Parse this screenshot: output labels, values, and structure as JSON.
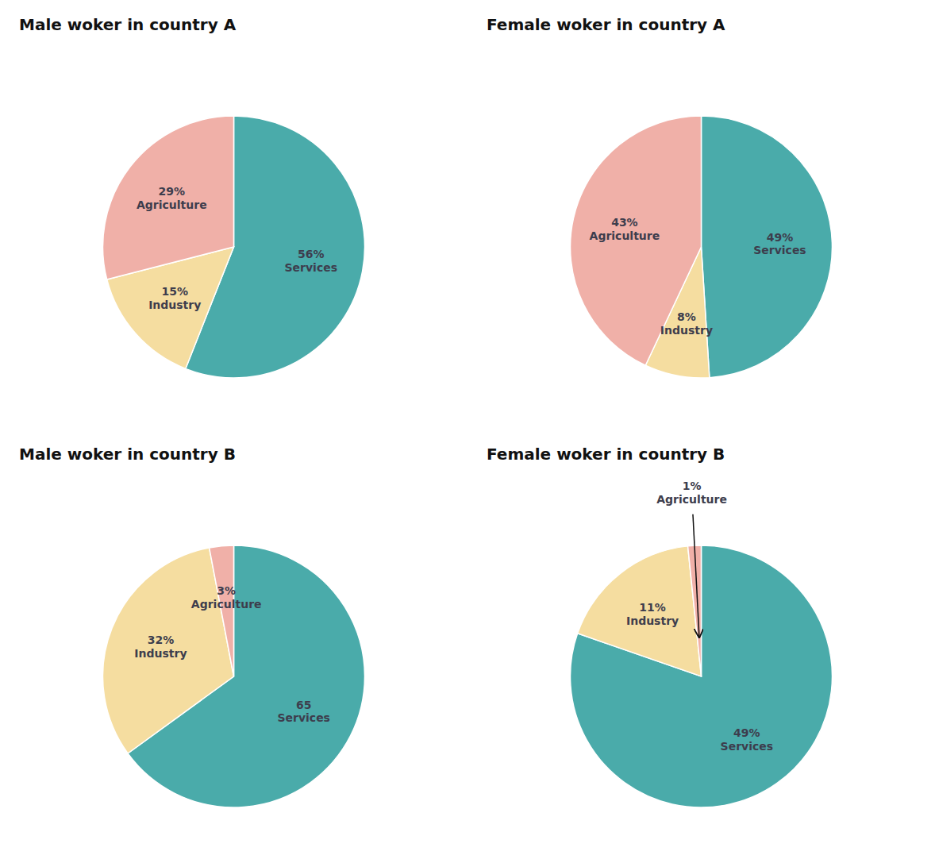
{
  "chart_data": [
    {
      "type": "pie",
      "title": "Male woker in country A",
      "categories": [
        "Services",
        "Industry",
        "Agriculture"
      ],
      "values": [
        56,
        15,
        29
      ],
      "value_labels": [
        "56%",
        "15%",
        "29%"
      ],
      "colors": [
        "#4aabaa",
        "#f5dda0",
        "#f0b0a8"
      ],
      "data_labels": true
    },
    {
      "type": "pie",
      "title": "Female woker in country A",
      "categories": [
        "Services",
        "Industry",
        "Agriculture"
      ],
      "values": [
        49,
        8,
        43
      ],
      "value_labels": [
        "49%",
        "8%",
        "43%"
      ],
      "colors": [
        "#4aabaa",
        "#f5dda0",
        "#f0b0a8"
      ],
      "data_labels": true
    },
    {
      "type": "pie",
      "title": "Male woker in country B",
      "categories": [
        "Services",
        "Industry",
        "Agriculture"
      ],
      "values": [
        65,
        32,
        3
      ],
      "value_labels": [
        "65",
        "32%",
        "3%"
      ],
      "colors": [
        "#4aabaa",
        "#f5dda0",
        "#f0b0a8"
      ],
      "data_labels": true
    },
    {
      "type": "pie",
      "title": "Female woker in country B",
      "categories": [
        "Services",
        "Industry",
        "Agriculture"
      ],
      "values": [
        49,
        11,
        1
      ],
      "value_labels": [
        "49%",
        "11%",
        "1%"
      ],
      "colors": [
        "#4aabaa",
        "#f5dda0",
        "#f0b0a8"
      ],
      "data_labels": true
    }
  ]
}
